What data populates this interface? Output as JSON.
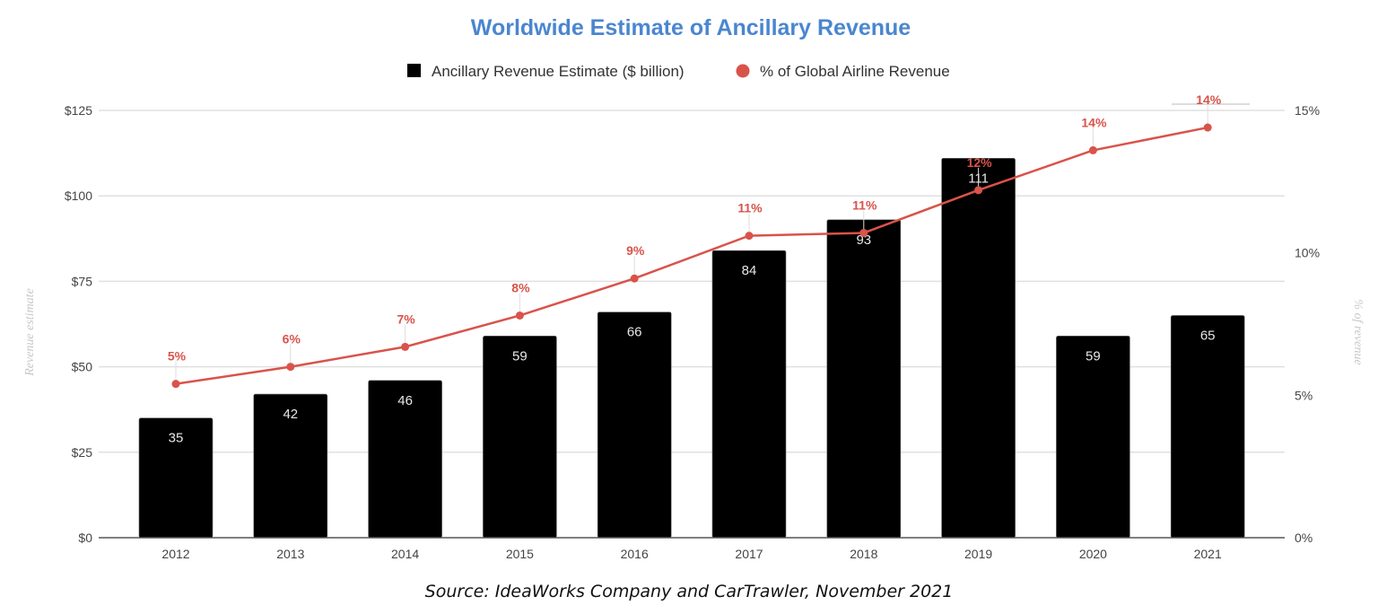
{
  "chart_data": {
    "type": "bar",
    "title": "Worldwide Estimate of Ancillary Revenue",
    "categories": [
      "2012",
      "2013",
      "2014",
      "2015",
      "2016",
      "2017",
      "2018",
      "2019",
      "2020",
      "2021"
    ],
    "series": [
      {
        "name": "Ancillary Revenue Estimate ($ billion)",
        "type": "bar",
        "axis": "left",
        "color": "#000000",
        "values": [
          35,
          42,
          46,
          59,
          66,
          84,
          93,
          111,
          59,
          65
        ],
        "labels": [
          "35",
          "42",
          "46",
          "59",
          "66",
          "84",
          "93",
          "111",
          "59",
          "65"
        ]
      },
      {
        "name": "% of Global Airline Revenue",
        "type": "line",
        "axis": "right",
        "color": "#d9534a",
        "values": [
          5.4,
          6.0,
          6.7,
          7.8,
          9.1,
          10.6,
          10.7,
          12.2,
          13.6,
          14.4
        ],
        "labels": [
          "5%",
          "6%",
          "7%",
          "8%",
          "9%",
          "11%",
          "11%",
          "12%",
          "14%",
          "14%"
        ]
      }
    ],
    "left_axis": {
      "label": "Revenue estimate",
      "range": [
        0,
        125
      ],
      "ticks": [
        0,
        25,
        50,
        75,
        100,
        125
      ],
      "tick_labels": [
        "$0",
        "$25",
        "$50",
        "$75",
        "$100",
        "$125"
      ]
    },
    "right_axis": {
      "label": "% of revenue",
      "range": [
        0,
        15
      ],
      "ticks": [
        0,
        5,
        10,
        15
      ],
      "tick_labels": [
        "0%",
        "5%",
        "10%",
        "15%"
      ]
    },
    "xlabel": "",
    "grid": true,
    "legend_position": "top-center"
  },
  "source": "Source: IdeaWorks Company and CarTrawler, November 2021"
}
